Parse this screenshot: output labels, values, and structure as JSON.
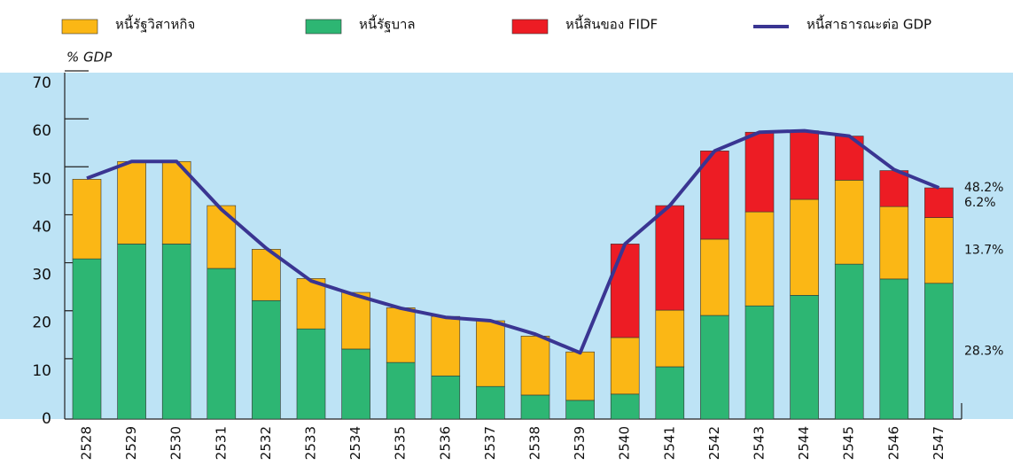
{
  "chart_data": {
    "type": "stacked_bar_line",
    "y_label": "% GDP",
    "categories": [
      "2528",
      "2529",
      "2530",
      "2531",
      "2532",
      "2533",
      "2534",
      "2535",
      "2536",
      "2537",
      "2538",
      "2539",
      "2540",
      "2541",
      "2542",
      "2543",
      "2544",
      "2545",
      "2546",
      "2547"
    ],
    "series": [
      {
        "name": "หนี้รัฐบาล",
        "color": "#2db673",
        "kind": "bar",
        "values": [
          33.4,
          36.5,
          36.5,
          31.4,
          24.7,
          18.8,
          14.6,
          11.8,
          9.0,
          6.8,
          5.0,
          3.9,
          5.2,
          10.9,
          21.6,
          23.6,
          25.8,
          32.3,
          29.2,
          28.3
        ],
        "value_labels": [
          null,
          null,
          null,
          null,
          null,
          null,
          null,
          null,
          null,
          null,
          null,
          null,
          null,
          null,
          null,
          null,
          null,
          null,
          null,
          "28.3%"
        ]
      },
      {
        "name": "หนี้รัฐวิสาหกิจ",
        "color": "#fbb715",
        "kind": "bar",
        "values": [
          16.6,
          17.2,
          17.2,
          13.1,
          10.7,
          10.5,
          11.8,
          11.4,
          12.4,
          13.7,
          12.3,
          10.1,
          11.8,
          11.8,
          15.9,
          19.6,
          20.0,
          17.5,
          15.1,
          13.7
        ],
        "value_labels": [
          null,
          null,
          null,
          null,
          null,
          null,
          null,
          null,
          null,
          null,
          null,
          null,
          null,
          null,
          null,
          null,
          null,
          null,
          null,
          "13.7%"
        ]
      },
      {
        "name": "หนี้สินของ FIDF",
        "color": "#ed1c24",
        "kind": "bar",
        "values": [
          0,
          0,
          0,
          0,
          0,
          0,
          0,
          0,
          0,
          0,
          0,
          0,
          19.5,
          21.8,
          18.4,
          16.6,
          14.3,
          9.2,
          7.5,
          6.2
        ],
        "value_labels": [
          null,
          null,
          null,
          null,
          null,
          null,
          null,
          null,
          null,
          null,
          null,
          null,
          null,
          null,
          null,
          null,
          null,
          null,
          null,
          "6.2%"
        ]
      },
      {
        "name": "หนี้สาธารณะต่อ GDP",
        "color": "#3a3592",
        "kind": "line",
        "values": [
          50.2,
          53.7,
          53.7,
          43.7,
          35.6,
          28.8,
          25.8,
          23.1,
          21.2,
          20.5,
          17.7,
          13.8,
          36.5,
          44.5,
          55.9,
          59.8,
          60.1,
          59.0,
          52.0,
          48.2
        ],
        "value_labels": [
          null,
          null,
          null,
          null,
          null,
          null,
          null,
          null,
          null,
          null,
          null,
          null,
          null,
          null,
          null,
          null,
          null,
          null,
          null,
          "48.2%"
        ]
      }
    ],
    "legend_order": [
      1,
      0,
      2,
      3
    ],
    "ylim": [
      0,
      70
    ],
    "yticks": [
      0,
      10,
      20,
      30,
      40,
      50,
      60,
      70
    ]
  }
}
